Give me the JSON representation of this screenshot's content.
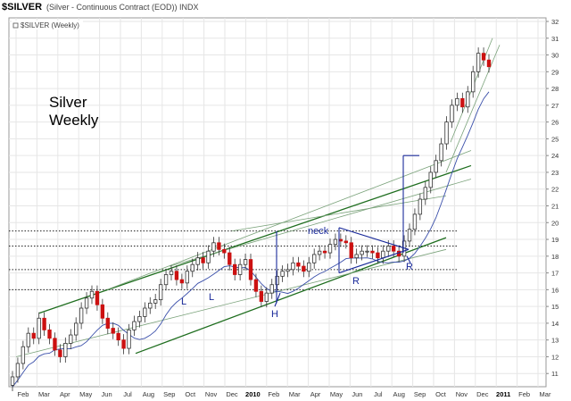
{
  "header": {
    "symbol": "$SILVER",
    "description": "(Silver - Continuous Contract (EOD)) INDX",
    "legend": "$SILVER (Weekly)"
  },
  "annotations": {
    "title_line1": "Silver",
    "title_line2": "Weekly",
    "neck": "neck",
    "L1": "L",
    "L2": "L",
    "H": "H",
    "R1": "R",
    "R2": "R"
  },
  "colors": {
    "up_candle": "#ffffff",
    "down_candle": "#cc1111",
    "channel_dark": "#1f6e1f",
    "channel_light": "#7aa27a",
    "pattern_line": "#1a2a9a",
    "moving_average": "#3a4faa",
    "grid": "#e6e6e6"
  },
  "chart_data": {
    "type": "candlestick",
    "period": "weekly",
    "ylim": [
      10,
      32
    ],
    "yticks": [
      "11",
      "12",
      "13",
      "14",
      "15",
      "16",
      "17",
      "18",
      "19",
      "20",
      "21",
      "22",
      "23",
      "24",
      "25",
      "26",
      "27",
      "28",
      "29",
      "30",
      "31",
      "32"
    ],
    "xticks": [
      "Feb",
      "Mar",
      "Apr",
      "May",
      "Jun",
      "Jul",
      "Aug",
      "Sep",
      "Oct",
      "Nov",
      "Dec",
      "2010",
      "Feb",
      "Mar",
      "Apr",
      "May",
      "Jun",
      "Jul",
      "Aug",
      "Sep",
      "Oct",
      "Nov",
      "Dec",
      "2011",
      "Feb",
      "Mar"
    ],
    "horizontal_levels": [
      19.5,
      18.6,
      17.2,
      16.0
    ],
    "approx_close_series": [
      10.8,
      11.6,
      12.6,
      13.4,
      13.1,
      14.3,
      13.6,
      13.1,
      12.4,
      12.0,
      12.8,
      13.3,
      14.0,
      14.9,
      15.5,
      15.9,
      15.1,
      14.3,
      13.7,
      13.4,
      13.0,
      12.5,
      13.6,
      14.1,
      14.4,
      14.9,
      15.2,
      15.4,
      16.3,
      16.9,
      17.1,
      16.6,
      16.4,
      17.1,
      17.5,
      17.9,
      17.6,
      18.3,
      18.8,
      18.4,
      18.2,
      17.5,
      16.9,
      17.5,
      17.8,
      16.6,
      15.9,
      15.3,
      15.8,
      16.3,
      16.8,
      17.1,
      17.2,
      17.6,
      17.4,
      17.1,
      17.6,
      18.1,
      18.3,
      18.2,
      18.7,
      19.0,
      18.9,
      18.8,
      17.9,
      18.1,
      18.3,
      18.3,
      18.2,
      17.9,
      18.3,
      18.6,
      18.3,
      18.0,
      18.9,
      19.6,
      20.5,
      21.4,
      22.1,
      23.0,
      23.7,
      24.7,
      26.0,
      27.0,
      27.4,
      26.9,
      27.8,
      29.0,
      30.1,
      29.7,
      29.3
    ]
  }
}
